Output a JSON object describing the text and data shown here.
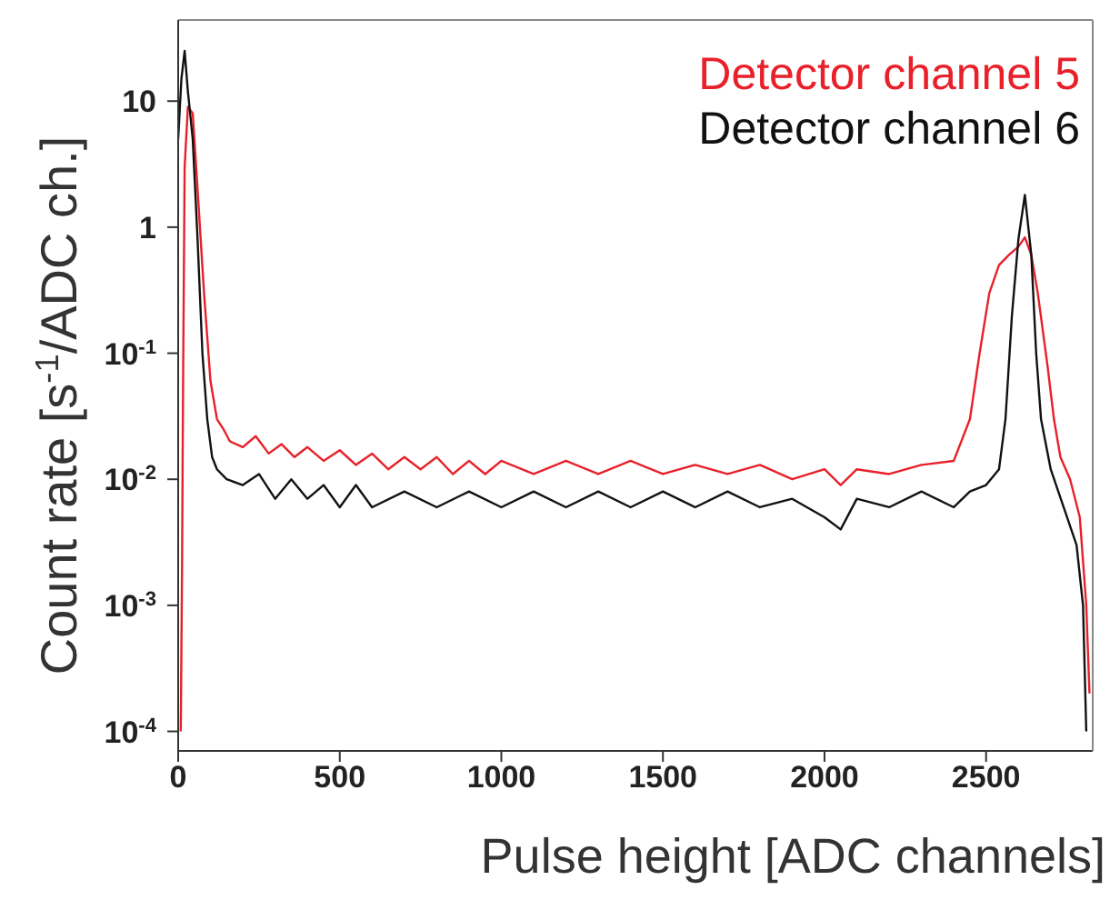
{
  "chart_data": {
    "type": "line",
    "xlabel": "Pulse height [ADC channels]",
    "ylabel": "Count rate [s$^{-1}$/ADC ch.]",
    "log": "y",
    "xlim": [
      0,
      2830
    ],
    "xticks": [
      0,
      500,
      1000,
      1500,
      2000,
      2500
    ],
    "ylim": [
      7e-05,
      44
    ],
    "yticks": [
      {
        "value": 10,
        "label": "10"
      },
      {
        "value": 1,
        "label": "1"
      },
      {
        "value": 0.1,
        "label": "10$^{-1}$"
      },
      {
        "value": 0.01,
        "label": "10$^{-2}$"
      },
      {
        "value": 0.001,
        "label": "10$^{-3}$"
      },
      {
        "value": 0.0001,
        "label": "10$^{-4}$"
      }
    ],
    "grid": false,
    "legend": "top right",
    "marker": "none",
    "series": [
      {
        "name": "Detector channel 5",
        "color": "#e8202a",
        "x": [
          8,
          12,
          15,
          20,
          30,
          45,
          60,
          80,
          100,
          120,
          140,
          160,
          200,
          240,
          280,
          320,
          360,
          400,
          450,
          500,
          550,
          600,
          650,
          700,
          750,
          800,
          850,
          900,
          950,
          1000,
          1100,
          1200,
          1300,
          1400,
          1500,
          1600,
          1700,
          1800,
          1900,
          2000,
          2050,
          2100,
          2200,
          2300,
          2400,
          2450,
          2480,
          2510,
          2540,
          2570,
          2600,
          2620,
          2640,
          2660,
          2690,
          2710,
          2730,
          2760,
          2790,
          2810,
          2820
        ],
        "values": [
          0.0001,
          0.002,
          0.05,
          3,
          9,
          8,
          2,
          0.3,
          0.06,
          0.03,
          0.025,
          0.02,
          0.018,
          0.022,
          0.016,
          0.019,
          0.015,
          0.018,
          0.014,
          0.017,
          0.013,
          0.016,
          0.012,
          0.015,
          0.012,
          0.015,
          0.011,
          0.014,
          0.011,
          0.014,
          0.011,
          0.014,
          0.011,
          0.014,
          0.011,
          0.013,
          0.011,
          0.013,
          0.01,
          0.012,
          0.009,
          0.012,
          0.011,
          0.013,
          0.014,
          0.03,
          0.1,
          0.3,
          0.5,
          0.6,
          0.7,
          0.83,
          0.6,
          0.3,
          0.08,
          0.03,
          0.015,
          0.01,
          0.005,
          0.001,
          0.0002
        ]
      },
      {
        "name": "Detector channel 6",
        "color": "#111111",
        "x": [
          0,
          10,
          20,
          30,
          45,
          60,
          75,
          90,
          105,
          120,
          150,
          200,
          250,
          300,
          350,
          400,
          450,
          500,
          550,
          600,
          700,
          800,
          900,
          1000,
          1100,
          1200,
          1300,
          1400,
          1500,
          1600,
          1700,
          1800,
          1900,
          2000,
          2050,
          2100,
          2200,
          2300,
          2400,
          2450,
          2500,
          2540,
          2560,
          2580,
          2600,
          2620,
          2640,
          2655,
          2670,
          2700,
          2740,
          2780,
          2800,
          2810
        ],
        "values": [
          5,
          15,
          25,
          12,
          5,
          0.8,
          0.1,
          0.03,
          0.015,
          0.012,
          0.01,
          0.009,
          0.011,
          0.007,
          0.01,
          0.007,
          0.009,
          0.006,
          0.009,
          0.006,
          0.008,
          0.006,
          0.008,
          0.006,
          0.008,
          0.006,
          0.008,
          0.006,
          0.008,
          0.006,
          0.008,
          0.006,
          0.007,
          0.005,
          0.004,
          0.007,
          0.006,
          0.008,
          0.006,
          0.008,
          0.009,
          0.012,
          0.03,
          0.2,
          0.8,
          1.8,
          0.6,
          0.1,
          0.03,
          0.012,
          0.006,
          0.003,
          0.001,
          0.0001
        ]
      }
    ]
  }
}
